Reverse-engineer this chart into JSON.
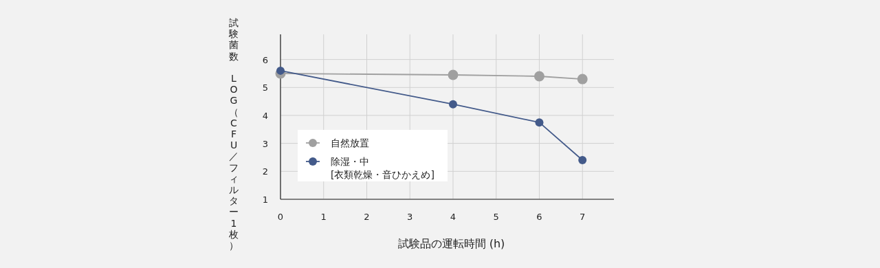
{
  "chart_data": {
    "type": "line",
    "xlabel": "試験品の運転時間 (h)",
    "ylabel": "試験菌数 LOG（CFU／フィルター1枚）",
    "x": [
      0,
      4,
      6,
      7
    ],
    "series": [
      {
        "name": "自然放置",
        "color": "#a0a0a0",
        "values": [
          5.5,
          5.45,
          5.4,
          5.3
        ]
      },
      {
        "name": "除湿・中\n[衣類乾燥・音ひかえめ]",
        "color": "#435a8a",
        "values": [
          5.6,
          4.4,
          3.75,
          2.4
        ]
      }
    ],
    "xlim": [
      0,
      7.73
    ],
    "xticks": [
      0,
      1,
      2,
      3,
      4,
      5,
      6,
      7
    ],
    "ylim": [
      1,
      6.9
    ],
    "yticks": [
      1,
      2,
      3,
      4,
      5,
      6
    ],
    "grid": true,
    "legend": "left",
    "marker": "circle",
    "line_style": "solid"
  }
}
